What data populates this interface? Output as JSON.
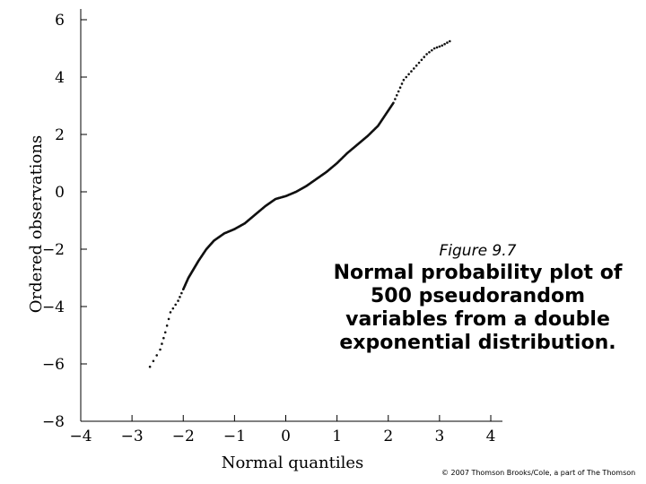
{
  "caption": {
    "figure_label": "Figure 9.7",
    "title": "Normal probability plot of 500 pseudorandom variables from a double exponential distribution."
  },
  "copyright": "© 2007 Thomson Brooks/Cole, a part of The Thomson",
  "chart_data": {
    "type": "scatter",
    "xlabel": "Normal quantiles",
    "ylabel": "Ordered observations",
    "xlim": [
      -4,
      4
    ],
    "ylim": [
      -8,
      6
    ],
    "xticks": [
      -4,
      -3,
      -2,
      -1,
      0,
      1,
      2,
      3,
      4
    ],
    "yticks": [
      -8,
      -6,
      -4,
      -2,
      0,
      2,
      4,
      6
    ],
    "xtick_labels": [
      "−4",
      "−3",
      "−2",
      "−1",
      "0",
      "1",
      "2",
      "3",
      "4"
    ],
    "ytick_labels": [
      "−8",
      "−6",
      "−4",
      "−2",
      "0",
      "2",
      "4",
      "6"
    ],
    "grid": false,
    "curve": {
      "x": [
        -2.65,
        -2.45,
        -2.35,
        -2.25,
        -2.1,
        -2.0,
        -1.9,
        -1.8,
        -1.7,
        -1.55,
        -1.4,
        -1.2,
        -1.0,
        -0.8,
        -0.6,
        -0.4,
        -0.2,
        0.0,
        0.2,
        0.4,
        0.6,
        0.8,
        1.0,
        1.2,
        1.4,
        1.6,
        1.8,
        1.95,
        2.1,
        2.2,
        2.3,
        2.45,
        2.6,
        2.75,
        2.9,
        3.05,
        3.2
      ],
      "y": [
        -6.1,
        -5.5,
        -4.9,
        -4.2,
        -3.8,
        -3.4,
        -3.0,
        -2.7,
        -2.4,
        -2.0,
        -1.7,
        -1.45,
        -1.3,
        -1.1,
        -0.8,
        -0.5,
        -0.25,
        -0.15,
        0.0,
        0.2,
        0.45,
        0.7,
        1.0,
        1.35,
        1.65,
        1.95,
        2.3,
        2.7,
        3.1,
        3.5,
        3.9,
        4.2,
        4.5,
        4.8,
        5.0,
        5.1,
        5.25
      ]
    }
  }
}
